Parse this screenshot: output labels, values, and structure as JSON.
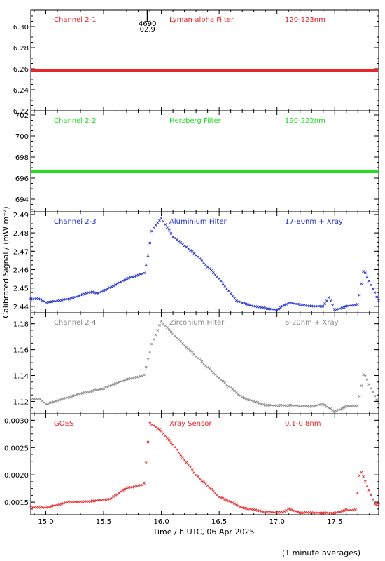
{
  "figure": {
    "xlabel": "Time / h UTC, 06 Apr 2025",
    "ylabel": "Calibrated Signal / (mW m⁻²)",
    "note": "(1 minute averages)",
    "marker_top": "4690",
    "marker_bottom": "02.9",
    "x_range": [
      14.87,
      17.88
    ],
    "x_ticks": [
      "15.0",
      "15.5",
      "16.0",
      "16.5",
      "17.0",
      "17.5"
    ]
  },
  "chart_data": [
    {
      "type": "scatter",
      "channel": "Channel 2-1",
      "filter": "Lyman-alpha Filter",
      "band": "120-123nm",
      "color": "#e8262a",
      "ylim": [
        6.22,
        6.316
      ],
      "yticks": [
        "6.22",
        "6.24",
        "6.26",
        "6.28",
        "6.30"
      ],
      "points": [
        [
          14.87,
          6.258
        ],
        [
          17.88,
          6.258
        ]
      ]
    },
    {
      "type": "scatter",
      "channel": "Channel 2-2",
      "filter": "Herzberg Filter",
      "band": "190-222nm",
      "color": "#22dd22",
      "ylim": [
        692.8,
        702.4
      ],
      "yticks": [
        "694",
        "696",
        "698",
        "700",
        "702"
      ],
      "points": [
        [
          14.87,
          696.6
        ],
        [
          17.88,
          696.6
        ]
      ]
    },
    {
      "type": "scatter",
      "channel": "Channel 2-3",
      "filter": "Aluminium Filter",
      "band": "17-80nm + Xray",
      "color": "#1f2fd0",
      "ylim": [
        2.4365,
        2.4915
      ],
      "yticks": [
        "2.44",
        "2.45",
        "2.46",
        "2.47",
        "2.48",
        "2.49"
      ],
      "points": [
        [
          14.87,
          2.444
        ],
        [
          14.95,
          2.444
        ],
        [
          15.0,
          2.442
        ],
        [
          15.2,
          2.444
        ],
        [
          15.4,
          2.448
        ],
        [
          15.45,
          2.447
        ],
        [
          15.55,
          2.45
        ],
        [
          15.7,
          2.455
        ],
        [
          15.85,
          2.458
        ],
        [
          15.88,
          2.466
        ],
        [
          15.92,
          2.482
        ],
        [
          16.0,
          2.488
        ],
        [
          16.1,
          2.478
        ],
        [
          16.3,
          2.468
        ],
        [
          16.5,
          2.455
        ],
        [
          16.65,
          2.443
        ],
        [
          16.8,
          2.44
        ],
        [
          17.0,
          2.438
        ],
        [
          17.1,
          2.442
        ],
        [
          17.3,
          2.44
        ],
        [
          17.4,
          2.44
        ],
        [
          17.45,
          2.445
        ],
        [
          17.5,
          2.438
        ],
        [
          17.6,
          2.44
        ],
        [
          17.7,
          2.441
        ],
        [
          17.75,
          2.46
        ],
        [
          17.88,
          2.443
        ]
      ]
    },
    {
      "type": "scatter",
      "channel": "Channel 2-4",
      "filter": "Zirconium Filter",
      "band": "6-20nm + Xray",
      "color": "#888888",
      "ylim": [
        1.1105,
        1.1885
      ],
      "yticks": [
        "1.12",
        "1.14",
        "1.16",
        "1.18"
      ],
      "points": [
        [
          14.87,
          1.122
        ],
        [
          14.95,
          1.122
        ],
        [
          15.0,
          1.118
        ],
        [
          15.3,
          1.126
        ],
        [
          15.45,
          1.129
        ],
        [
          15.5,
          1.13
        ],
        [
          15.7,
          1.137
        ],
        [
          15.85,
          1.14
        ],
        [
          15.92,
          1.165
        ],
        [
          16.0,
          1.182
        ],
        [
          16.1,
          1.172
        ],
        [
          16.3,
          1.155
        ],
        [
          16.5,
          1.138
        ],
        [
          16.7,
          1.123
        ],
        [
          16.9,
          1.117
        ],
        [
          17.1,
          1.117
        ],
        [
          17.3,
          1.116
        ],
        [
          17.4,
          1.118
        ],
        [
          17.5,
          1.112
        ],
        [
          17.6,
          1.116
        ],
        [
          17.7,
          1.117
        ],
        [
          17.75,
          1.142
        ],
        [
          17.88,
          1.118
        ]
      ]
    },
    {
      "type": "scatter",
      "channel": "GOES",
      "filter": "Xray Sensor",
      "band": "0.1-0.8nm",
      "color": "#e8262a",
      "ylim": [
        0.00127,
        0.00312
      ],
      "yticks": [
        "0.0015",
        "0.0020",
        "0.0025",
        "0.0030"
      ],
      "points": [
        [
          14.87,
          0.00141
        ],
        [
          15.0,
          0.0014
        ],
        [
          15.2,
          0.0015
        ],
        [
          15.4,
          0.00152
        ],
        [
          15.55,
          0.00155
        ],
        [
          15.7,
          0.00176
        ],
        [
          15.85,
          0.00182
        ],
        [
          15.9,
          0.00295
        ],
        [
          16.0,
          0.0028
        ],
        [
          16.1,
          0.00255
        ],
        [
          16.3,
          0.002
        ],
        [
          16.5,
          0.0016
        ],
        [
          16.7,
          0.0014
        ],
        [
          16.9,
          0.00132
        ],
        [
          17.05,
          0.00131
        ],
        [
          17.1,
          0.00138
        ],
        [
          17.2,
          0.00131
        ],
        [
          17.5,
          0.0013
        ],
        [
          17.6,
          0.00136
        ],
        [
          17.68,
          0.00135
        ],
        [
          17.72,
          0.0021
        ],
        [
          17.85,
          0.00145
        ]
      ]
    }
  ]
}
